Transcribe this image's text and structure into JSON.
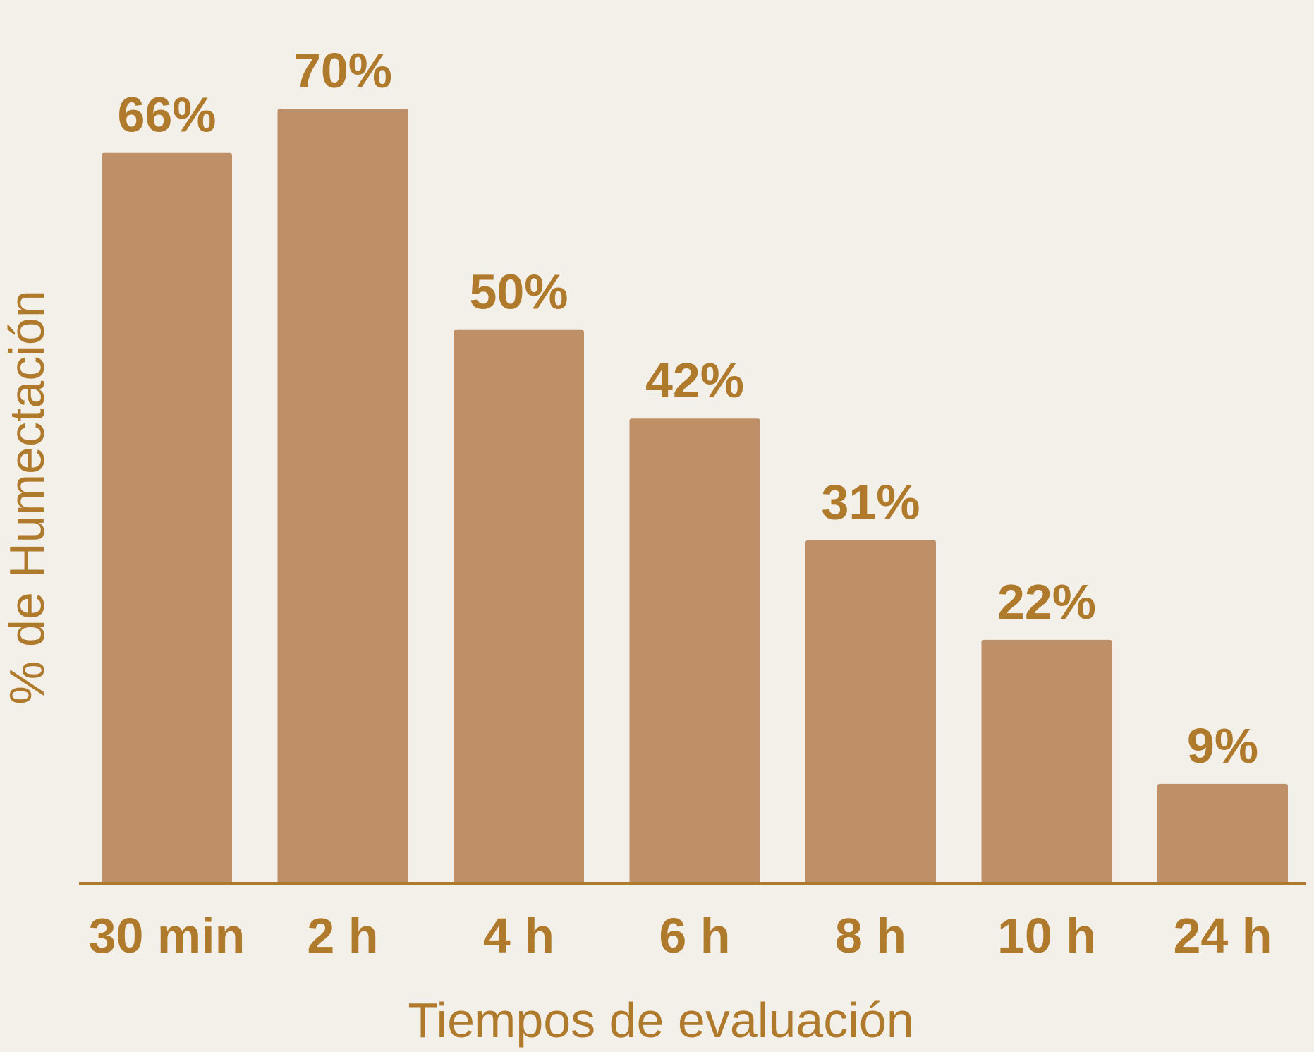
{
  "chart_data": {
    "type": "bar",
    "categories": [
      "30 min",
      "2 h",
      "4 h",
      "6 h",
      "8 h",
      "10 h",
      "24 h"
    ],
    "values": [
      66,
      70,
      50,
      42,
      31,
      22,
      9
    ],
    "value_labels": [
      "66%",
      "70%",
      "50%",
      "42%",
      "31%",
      "22%",
      "9%"
    ],
    "xlabel": "Tiempos de evaluación",
    "ylabel": "% de Humectación",
    "ylim": [
      0,
      70
    ],
    "grid": false,
    "legend": "none",
    "colors": {
      "bar": "#bf9068",
      "text": "#b07a2c",
      "axis": "#b07a2c",
      "background": "#f3f0e9"
    }
  }
}
